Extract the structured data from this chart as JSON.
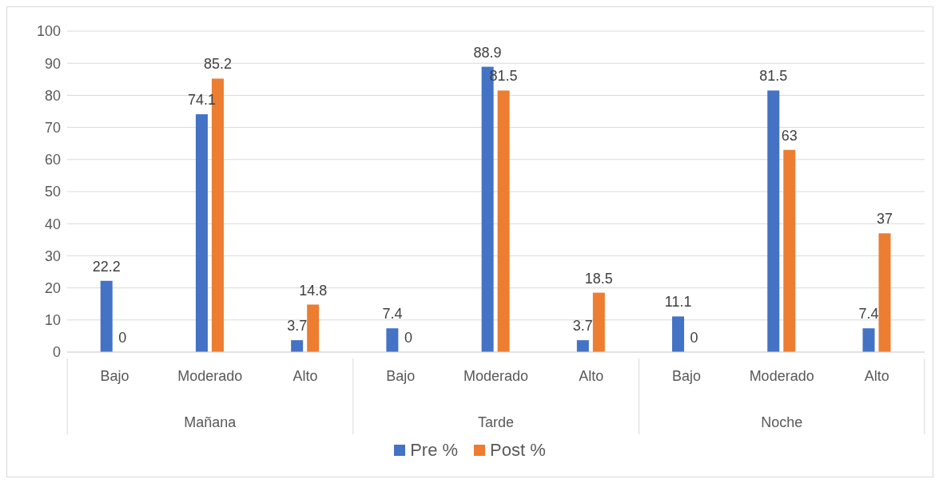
{
  "chart_data": {
    "type": "bar",
    "categories": [
      "Bajo",
      "Moderado",
      "Alto",
      "Bajo",
      "Moderado",
      "Alto",
      "Bajo",
      "Moderado",
      "Alto"
    ],
    "annotations": [
      "Mañana",
      "Tarde",
      "Noche"
    ],
    "series": [
      {
        "name": "Pre  %",
        "color": "#4472c4",
        "values": [
          22.2,
          74.1,
          3.7,
          7.4,
          88.9,
          3.7,
          11.1,
          81.5,
          7.4
        ]
      },
      {
        "name": "Post  %",
        "color": "#ed7d31",
        "values": [
          0,
          85.2,
          14.8,
          0,
          81.5,
          18.5,
          0,
          63,
          37
        ]
      }
    ],
    "ylim": [
      0,
      100
    ],
    "yticks": [
      0,
      10,
      20,
      30,
      40,
      50,
      60,
      70,
      80,
      90,
      100
    ],
    "grid": "y",
    "legend": "bottom",
    "data_labels": true
  }
}
